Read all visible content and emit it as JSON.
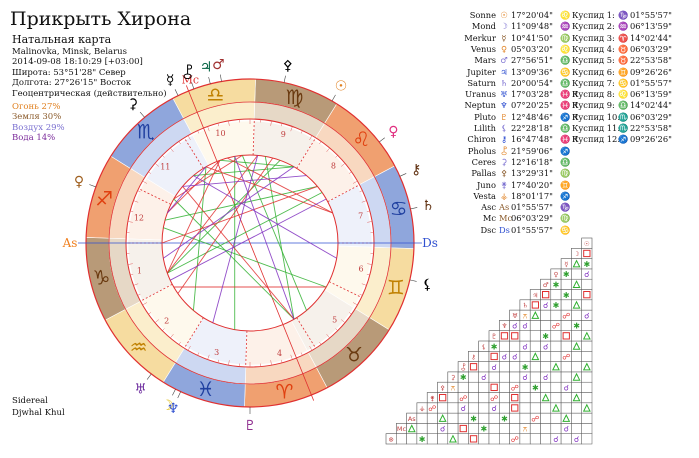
{
  "header": {
    "title": "Прикрыть Хирона",
    "subtitle": "Натальная карта",
    "info_lines": [
      "Malinovka, Minsk, Belarus",
      "2014-09-08 18:10:29 [+03:00]",
      "Широта: 53°51'28\" Север",
      "Долгота: 27°26'15\" Восток",
      "Геоцентрическая (действительно)"
    ]
  },
  "elements": {
    "fire": "Огонь 27%",
    "earth": "Земля 30%",
    "air": "Воздух 29%",
    "water": "Вода 14%"
  },
  "footer": {
    "line1": "Sidereal",
    "line2": "Djwhal Khul"
  },
  "wheel_labels": {
    "asc": "As",
    "dsc": "Ds",
    "mc": "Mc"
  },
  "colors": {
    "fire": "#f0a070",
    "earth": "#b89a78",
    "air": "#f6dca0",
    "water": "#8fa6dc",
    "fire_inner": "#f8d8c0",
    "earth_inner": "#e6d8c6",
    "air_inner": "#fbeecc",
    "water_inner": "#cdd8f2",
    "aspect_red": "#e03030",
    "aspect_green": "#30b030",
    "aspect_purple": "#8030c0",
    "axis_blue": "#3050d0"
  },
  "houses": [
    "1",
    "2",
    "3",
    "4",
    "5",
    "6",
    "7",
    "8",
    "9",
    "10",
    "11",
    "12"
  ],
  "planets": [
    {
      "name": "Sonne",
      "glyph": "☉",
      "pos": "17°20'04\"",
      "sign": "♌",
      "color": "#e08020",
      "retro": ""
    },
    {
      "name": "Mond",
      "glyph": "☽",
      "pos": "11°09'48\"",
      "sign": "♒",
      "color": "#7a6fd0",
      "retro": ""
    },
    {
      "name": "Merkur",
      "glyph": "☿",
      "pos": "10°41'50\"",
      "sign": "♍",
      "color": "#8a5a2a",
      "retro": ""
    },
    {
      "name": "Venus",
      "glyph": "♀",
      "pos": "05°03'20\"",
      "sign": "♌",
      "color": "#e08020",
      "retro": ""
    },
    {
      "name": "Mars",
      "glyph": "♂",
      "pos": "27°56'51\"",
      "sign": "♎",
      "color": "#7a6fd0",
      "retro": ""
    },
    {
      "name": "Jupiter",
      "glyph": "♃",
      "pos": "13°09'36\"",
      "sign": "♋",
      "color": "#3050d0",
      "retro": ""
    },
    {
      "name": "Saturn",
      "glyph": "♄",
      "pos": "20°00'54\"",
      "sign": "♎",
      "color": "#7a6fd0",
      "retro": ""
    },
    {
      "name": "Uranus",
      "glyph": "♅",
      "pos": "17°03'28\"",
      "sign": "♓",
      "color": "#3050d0",
      "retro": "R"
    },
    {
      "name": "Neptun",
      "glyph": "♆",
      "pos": "07°20'25\"",
      "sign": "♓",
      "color": "#3050d0",
      "retro": "R"
    },
    {
      "name": "Pluto",
      "glyph": "♇",
      "pos": "12°48'46\"",
      "sign": "♐",
      "color": "#e08020",
      "retro": "R"
    },
    {
      "name": "Lilith",
      "glyph": "⚸",
      "pos": "22°28'18\"",
      "sign": "♎",
      "color": "#7a6fd0",
      "retro": ""
    },
    {
      "name": "Chiron",
      "glyph": "⚷",
      "pos": "16°47'48\"",
      "sign": "♓",
      "color": "#3050d0",
      "retro": "R"
    },
    {
      "name": "Pholus",
      "glyph": "⯛",
      "pos": "21°59'06\"",
      "sign": "♐",
      "color": "#e08020",
      "retro": ""
    },
    {
      "name": "Ceres",
      "glyph": "⚳",
      "pos": "12°16'18\"",
      "sign": "♎",
      "color": "#7a6fd0",
      "retro": ""
    },
    {
      "name": "Pallas",
      "glyph": "⚴",
      "pos": "13°29'31\"",
      "sign": "♍",
      "color": "#8a5a2a",
      "retro": ""
    },
    {
      "name": "Juno",
      "glyph": "⚵",
      "pos": "17°40'20\"",
      "sign": "♊",
      "color": "#7a6fd0",
      "retro": ""
    },
    {
      "name": "Vesta",
      "glyph": "⚶",
      "pos": "18°01'17\"",
      "sign": "♐",
      "color": "#e08020",
      "retro": ""
    },
    {
      "name": "Asc",
      "glyph": "As",
      "pos": "01°55'57\"",
      "sign": "♑",
      "color": "#8a5a2a",
      "retro": ""
    },
    {
      "name": "Mc",
      "glyph": "Mc",
      "pos": "06°03'29\"",
      "sign": "♍",
      "color": "#8a5a2a",
      "retro": ""
    },
    {
      "name": "Dsc",
      "glyph": "Ds",
      "pos": "01°55'57\"",
      "sign": "♋",
      "color": "#3050d0",
      "retro": ""
    }
  ],
  "cusps": [
    {
      "name": "Куспид 1:",
      "sign": "♑",
      "pos": "01°55'57\"",
      "color": "#8a5a2a"
    },
    {
      "name": "Куспид 2:",
      "sign": "♒",
      "pos": "06°13'59\"",
      "color": "#7a6fd0"
    },
    {
      "name": "Куспид 3:",
      "sign": "♈",
      "pos": "14°02'44\"",
      "color": "#e08020"
    },
    {
      "name": "Куспид 4:",
      "sign": "♉",
      "pos": "06°03'29\"",
      "color": "#8a5a2a"
    },
    {
      "name": "Куспид 5:",
      "sign": "♉",
      "pos": "22°53'58\"",
      "color": "#8a5a2a"
    },
    {
      "name": "Куспид 6:",
      "sign": "♊",
      "pos": "09°26'26\"",
      "color": "#7a6fd0"
    },
    {
      "name": "Куспид 7:",
      "sign": "♋",
      "pos": "01°55'57\"",
      "color": "#3050d0"
    },
    {
      "name": "Куспид 8:",
      "sign": "♌",
      "pos": "06°13'59\"",
      "color": "#e08020"
    },
    {
      "name": "Куспид 9:",
      "sign": "♎",
      "pos": "14°02'44\"",
      "color": "#7a6fd0"
    },
    {
      "name": "Куспид 10:",
      "sign": "♏",
      "pos": "06°03'29\"",
      "color": "#3050d0"
    },
    {
      "name": "Куспид 11:",
      "sign": "♏",
      "pos": "22°53'58\"",
      "color": "#3050d0"
    },
    {
      "name": "Куспид 12:",
      "sign": "♐",
      "pos": "09°26'26\"",
      "color": "#e08020"
    }
  ],
  "aspect_grid": {
    "glyphs": [
      "☉",
      "☽",
      "☿",
      "♀",
      "♂",
      "♃",
      "♄",
      "♅",
      "♆",
      "♇",
      "⚸",
      "⚷",
      "⯛",
      "⚳",
      "⚴",
      "⚵",
      "⚶",
      "As",
      "Mc",
      "⊗"
    ],
    "cells": [
      {
        "r": 1,
        "c": 0,
        "t": "sq"
      },
      {
        "r": 2,
        "c": 0,
        "t": "sx"
      },
      {
        "r": 2,
        "c": 1,
        "t": "tr"
      },
      {
        "r": 3,
        "c": 0,
        "t": "cj"
      },
      {
        "r": 3,
        "c": 2,
        "t": "sx"
      },
      {
        "r": 4,
        "c": 1,
        "t": "tr"
      },
      {
        "r": 4,
        "c": 3,
        "t": "sx"
      },
      {
        "r": 5,
        "c": 0,
        "t": "sq"
      },
      {
        "r": 5,
        "c": 2,
        "t": "sx"
      },
      {
        "r": 5,
        "c": 4,
        "t": "sq"
      },
      {
        "r": 6,
        "c": 1,
        "t": "tr"
      },
      {
        "r": 6,
        "c": 3,
        "t": "sx"
      },
      {
        "r": 6,
        "c": 4,
        "t": "cj"
      },
      {
        "r": 6,
        "c": 5,
        "t": "sq"
      },
      {
        "r": 7,
        "c": 0,
        "t": "cj"
      },
      {
        "r": 7,
        "c": 2,
        "t": "op"
      },
      {
        "r": 7,
        "c": 5,
        "t": "tr"
      },
      {
        "r": 7,
        "c": 6,
        "t": "qx"
      },
      {
        "r": 8,
        "c": 1,
        "t": "sx"
      },
      {
        "r": 8,
        "c": 3,
        "t": "op"
      },
      {
        "r": 8,
        "c": 6,
        "t": "cj"
      },
      {
        "r": 8,
        "c": 7,
        "t": "cj"
      },
      {
        "r": 9,
        "c": 0,
        "t": "tr"
      },
      {
        "r": 9,
        "c": 2,
        "t": "sq"
      },
      {
        "r": 9,
        "c": 4,
        "t": "sx"
      },
      {
        "r": 9,
        "c": 7,
        "t": "sq"
      },
      {
        "r": 9,
        "c": 8,
        "t": "sq"
      },
      {
        "r": 10,
        "c": 1,
        "t": "tr"
      },
      {
        "r": 10,
        "c": 4,
        "t": "cj"
      },
      {
        "r": 10,
        "c": 6,
        "t": "cj"
      },
      {
        "r": 10,
        "c": 9,
        "t": "sx"
      },
      {
        "r": 11,
        "c": 2,
        "t": "op"
      },
      {
        "r": 11,
        "c": 5,
        "t": "tr"
      },
      {
        "r": 11,
        "c": 7,
        "t": "cj"
      },
      {
        "r": 11,
        "c": 8,
        "t": "cj"
      },
      {
        "r": 11,
        "c": 9,
        "t": "sq"
      },
      {
        "r": 12,
        "c": 0,
        "t": "tr"
      },
      {
        "r": 12,
        "c": 3,
        "t": "tr"
      },
      {
        "r": 12,
        "c": 6,
        "t": "sx"
      },
      {
        "r": 12,
        "c": 9,
        "t": "cj"
      },
      {
        "r": 12,
        "c": 11,
        "t": "sq"
      },
      {
        "r": 13,
        "c": 1,
        "t": "tr"
      },
      {
        "r": 13,
        "c": 4,
        "t": "cj"
      },
      {
        "r": 13,
        "c": 6,
        "t": "cj"
      },
      {
        "r": 13,
        "c": 10,
        "t": "cj"
      },
      {
        "r": 13,
        "c": 12,
        "t": "sx"
      },
      {
        "r": 14,
        "c": 2,
        "t": "cj"
      },
      {
        "r": 14,
        "c": 5,
        "t": "sx"
      },
      {
        "r": 14,
        "c": 7,
        "t": "op"
      },
      {
        "r": 14,
        "c": 9,
        "t": "sq"
      },
      {
        "r": 14,
        "c": 13,
        "t": "qx"
      },
      {
        "r": 15,
        "c": 1,
        "t": "tr"
      },
      {
        "r": 15,
        "c": 4,
        "t": "tr"
      },
      {
        "r": 15,
        "c": 7,
        "t": "sq"
      },
      {
        "r": 15,
        "c": 9,
        "t": "op"
      },
      {
        "r": 15,
        "c": 12,
        "t": "op"
      },
      {
        "r": 15,
        "c": 14,
        "t": "sq"
      },
      {
        "r": 16,
        "c": 0,
        "t": "tr"
      },
      {
        "r": 16,
        "c": 3,
        "t": "tr"
      },
      {
        "r": 16,
        "c": 7,
        "t": "sq"
      },
      {
        "r": 16,
        "c": 9,
        "t": "cj"
      },
      {
        "r": 16,
        "c": 12,
        "t": "cj"
      },
      {
        "r": 16,
        "c": 15,
        "t": "op"
      },
      {
        "r": 17,
        "c": 2,
        "t": "tr"
      },
      {
        "r": 17,
        "c": 5,
        "t": "op"
      },
      {
        "r": 17,
        "c": 8,
        "t": "sx"
      },
      {
        "r": 17,
        "c": 11,
        "t": "sx"
      },
      {
        "r": 17,
        "c": 14,
        "t": "tr"
      },
      {
        "r": 18,
        "c": 2,
        "t": "cj"
      },
      {
        "r": 18,
        "c": 6,
        "t": "qx"
      },
      {
        "r": 18,
        "c": 10,
        "t": "sx"
      },
      {
        "r": 18,
        "c": 12,
        "t": "sq"
      },
      {
        "r": 18,
        "c": 14,
        "t": "cj"
      },
      {
        "r": 18,
        "c": 17,
        "t": "tr"
      },
      {
        "r": 19,
        "c": 1,
        "t": "cj"
      },
      {
        "r": 19,
        "c": 3,
        "t": "cj"
      },
      {
        "r": 19,
        "c": 7,
        "t": "op"
      },
      {
        "r": 19,
        "c": 11,
        "t": "sq"
      },
      {
        "r": 19,
        "c": 13,
        "t": "tr"
      },
      {
        "r": 19,
        "c": 16,
        "t": "sx"
      }
    ]
  }
}
